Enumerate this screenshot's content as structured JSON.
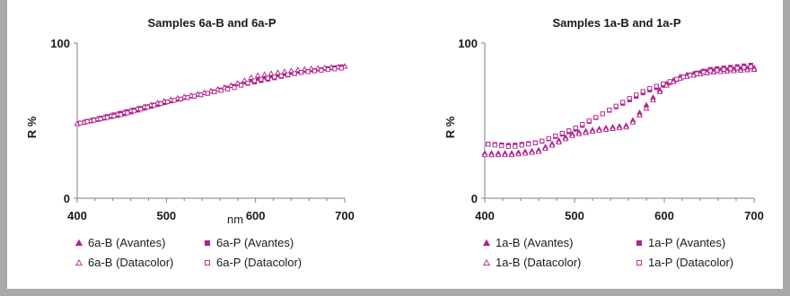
{
  "colors": {
    "marker": "#b0228c",
    "axis": "#808080",
    "frame": "#a9a9a9"
  },
  "chart_data": [
    {
      "type": "scatter",
      "title": "Samples 6a-B and 6a-P",
      "xlabel": "nm",
      "ylabel": "R %",
      "xlim": [
        400,
        700
      ],
      "ylim": [
        0,
        100
      ],
      "xticks": [
        "400",
        "500",
        "600",
        "700"
      ],
      "yticks": [
        "0",
        "100"
      ],
      "grid": false,
      "legend_position": "bottom",
      "series": [
        {
          "name": "6a-B (Avantes)",
          "marker": "filled-triangle",
          "x": [
            400,
            450,
            500,
            550,
            575,
            600,
            650,
            700
          ],
          "y": [
            48,
            54,
            62,
            69,
            73,
            77,
            82,
            85
          ]
        },
        {
          "name": "6a-P (Avantes)",
          "marker": "filled-square",
          "x": [
            400,
            450,
            500,
            550,
            575,
            600,
            650,
            700
          ],
          "y": [
            48,
            55,
            62,
            68,
            72,
            75,
            81,
            85
          ]
        },
        {
          "name": "6a-B (Datacolor)",
          "marker": "open-triangle",
          "x": [
            400,
            450,
            500,
            550,
            575,
            600,
            650,
            700
          ],
          "y": [
            48,
            55,
            63,
            69,
            73,
            79,
            83,
            85
          ]
        },
        {
          "name": "6a-P (Datacolor)",
          "marker": "open-square",
          "x": [
            400,
            450,
            500,
            550,
            575,
            600,
            650,
            700
          ],
          "y": [
            48,
            54,
            62,
            68,
            71,
            76,
            81,
            84
          ]
        }
      ]
    },
    {
      "type": "scatter",
      "title": "Samples 1a-B and 1a-P",
      "xlabel": "",
      "ylabel": "R %",
      "xlim": [
        400,
        700
      ],
      "ylim": [
        0,
        100
      ],
      "xticks": [
        "400",
        "500",
        "600",
        "700"
      ],
      "yticks": [
        "0",
        "100"
      ],
      "grid": false,
      "legend_position": "bottom",
      "series": [
        {
          "name": "1a-B (Avantes)",
          "marker": "filled-triangle",
          "x": [
            400,
            430,
            460,
            500,
            530,
            560,
            580,
            600,
            620,
            650,
            700
          ],
          "y": [
            29,
            29,
            31,
            42,
            45,
            47,
            60,
            73,
            79,
            82,
            84
          ]
        },
        {
          "name": "1a-P (Avantes)",
          "marker": "filled-square",
          "x": [
            400,
            430,
            460,
            500,
            530,
            560,
            580,
            600,
            620,
            650,
            700
          ],
          "y": [
            35,
            34,
            36,
            44,
            54,
            63,
            69,
            73,
            78,
            83,
            86
          ]
        },
        {
          "name": "1a-B (Datacolor)",
          "marker": "open-triangle",
          "x": [
            400,
            430,
            460,
            500,
            530,
            560,
            580,
            600,
            620,
            650,
            700
          ],
          "y": [
            28,
            28,
            30,
            41,
            44,
            46,
            58,
            72,
            78,
            81,
            83
          ]
        },
        {
          "name": "1a-P (Datacolor)",
          "marker": "open-square",
          "x": [
            400,
            430,
            460,
            500,
            530,
            560,
            580,
            600,
            620,
            650,
            700
          ],
          "y": [
            35,
            33,
            36,
            45,
            54,
            64,
            70,
            74,
            78,
            82,
            85
          ]
        }
      ]
    }
  ]
}
